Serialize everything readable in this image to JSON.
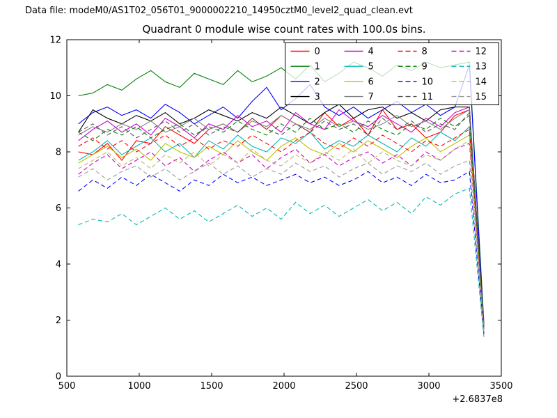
{
  "header": {
    "data_file_label": "Data file: modeM0/AS1T02_056T01_9000002210_14950cztM0_level2_quad_clean.evt"
  },
  "chart_data": {
    "type": "line",
    "title": "Quadrant 0 module wise count rates with 100.0s bins.",
    "xlabel": "",
    "ylabel": "",
    "x_offset_label": "+2.6837e8",
    "xlim": [
      500,
      3500
    ],
    "ylim": [
      0,
      12
    ],
    "x_ticks": [
      500,
      1000,
      1500,
      2000,
      2500,
      3000,
      3500
    ],
    "y_ticks": [
      0,
      2,
      4,
      6,
      8,
      10,
      12
    ],
    "grid": false,
    "legend_position": "upper right",
    "legend_columns": 4,
    "x": [
      580,
      680,
      780,
      880,
      980,
      1080,
      1180,
      1280,
      1380,
      1480,
      1580,
      1680,
      1780,
      1880,
      1980,
      2080,
      2180,
      2280,
      2380,
      2480,
      2580,
      2680,
      2780,
      2880,
      2980,
      3080,
      3180,
      3280,
      3380
    ],
    "series": [
      {
        "name": "0",
        "color": "#ff0000",
        "dash": "solid",
        "values": [
          8.0,
          7.9,
          8.3,
          7.7,
          8.4,
          8.3,
          8.9,
          8.6,
          8.3,
          8.8,
          9.0,
          8.7,
          9.2,
          8.8,
          9.3,
          9.0,
          8.7,
          9.4,
          8.9,
          9.2,
          8.6,
          9.5,
          8.8,
          9.0,
          8.5,
          8.7,
          9.3,
          9.5,
          1.8
        ]
      },
      {
        "name": "1",
        "color": "#007f00",
        "dash": "solid",
        "values": [
          10.0,
          10.1,
          10.4,
          10.2,
          10.6,
          10.9,
          10.5,
          10.3,
          10.8,
          10.6,
          10.4,
          10.9,
          10.5,
          10.7,
          11.0,
          10.6,
          11.1,
          10.5,
          10.8,
          11.2,
          11.0,
          10.7,
          11.1,
          10.9,
          11.2,
          11.0,
          11.1,
          11.2,
          1.9
        ]
      },
      {
        "name": "2",
        "color": "#0000ff",
        "dash": "solid",
        "values": [
          9.0,
          9.4,
          9.6,
          9.3,
          9.5,
          9.2,
          9.7,
          9.4,
          9.0,
          9.3,
          9.6,
          9.2,
          9.8,
          10.3,
          9.5,
          9.9,
          10.4,
          9.6,
          9.3,
          9.6,
          9.2,
          9.5,
          9.8,
          9.4,
          9.7,
          9.3,
          9.6,
          11.1,
          1.7
        ]
      },
      {
        "name": "3",
        "color": "#000000",
        "dash": "solid",
        "values": [
          8.7,
          9.5,
          9.2,
          9.0,
          9.3,
          9.1,
          9.4,
          9.0,
          9.2,
          9.5,
          9.3,
          9.1,
          9.4,
          9.2,
          9.6,
          9.3,
          9.0,
          9.4,
          9.7,
          9.2,
          9.5,
          9.6,
          9.2,
          9.4,
          9.1,
          9.5,
          9.6,
          9.6,
          1.8
        ]
      },
      {
        "name": "4",
        "color": "#cc00cc",
        "dash": "solid",
        "values": [
          8.4,
          8.8,
          9.1,
          8.7,
          9.0,
          8.6,
          9.2,
          8.9,
          8.5,
          9.0,
          8.8,
          9.3,
          8.9,
          9.1,
          8.7,
          9.4,
          9.0,
          8.8,
          9.5,
          9.1,
          8.9,
          9.3,
          9.0,
          8.7,
          9.2,
          8.9,
          9.4,
          9.6,
          1.6
        ]
      },
      {
        "name": "5",
        "color": "#00b8b8",
        "dash": "solid",
        "values": [
          7.7,
          8.0,
          8.4,
          7.9,
          8.2,
          8.5,
          8.0,
          8.3,
          7.8,
          8.4,
          8.1,
          8.6,
          8.2,
          8.0,
          8.5,
          8.3,
          8.7,
          8.1,
          8.4,
          8.2,
          8.6,
          8.3,
          8.0,
          8.5,
          8.2,
          8.7,
          8.4,
          8.9,
          1.5
        ]
      },
      {
        "name": "6",
        "color": "#bfbf00",
        "dash": "solid",
        "values": [
          7.6,
          7.9,
          8.2,
          7.8,
          8.1,
          7.7,
          8.3,
          8.0,
          7.8,
          8.2,
          7.9,
          8.4,
          8.0,
          7.7,
          8.2,
          8.5,
          8.1,
          7.9,
          8.3,
          8.0,
          8.4,
          8.1,
          7.8,
          8.2,
          8.5,
          8.0,
          8.3,
          8.6,
          1.6
        ]
      },
      {
        "name": "7",
        "color": "#808080",
        "dash": "solid",
        "values": [
          8.6,
          8.9,
          8.7,
          9.0,
          8.8,
          9.1,
          8.7,
          8.9,
          9.2,
          8.8,
          9.0,
          8.7,
          9.1,
          8.9,
          9.3,
          9.0,
          8.8,
          9.2,
          8.9,
          9.1,
          8.8,
          9.0,
          9.3,
          8.9,
          9.1,
          8.8,
          9.2,
          9.5,
          1.7
        ]
      },
      {
        "name": "8",
        "color": "#ff0000",
        "dash": "dashed",
        "values": [
          8.2,
          8.5,
          8.1,
          8.4,
          8.0,
          8.3,
          8.6,
          8.2,
          8.5,
          8.1,
          8.4,
          8.2,
          8.6,
          8.3,
          8.0,
          8.4,
          8.7,
          8.3,
          8.1,
          8.5,
          8.2,
          8.6,
          8.3,
          8.0,
          8.4,
          8.2,
          8.5,
          8.8,
          1.8
        ]
      },
      {
        "name": "9",
        "color": "#007f00",
        "dash": "dashed",
        "values": [
          8.7,
          8.4,
          8.8,
          8.6,
          8.9,
          8.5,
          8.8,
          9.0,
          8.6,
          8.9,
          8.7,
          9.1,
          8.8,
          8.6,
          9.0,
          8.7,
          9.2,
          8.8,
          9.0,
          8.7,
          9.1,
          8.8,
          8.6,
          9.0,
          8.8,
          9.2,
          8.9,
          9.3,
          1.7
        ]
      },
      {
        "name": "10",
        "color": "#0000ff",
        "dash": "dashed",
        "values": [
          6.6,
          7.0,
          6.7,
          7.1,
          6.8,
          7.2,
          6.9,
          6.6,
          7.0,
          6.8,
          7.2,
          6.9,
          7.1,
          6.8,
          7.0,
          7.2,
          6.9,
          7.1,
          6.8,
          7.0,
          7.3,
          6.9,
          7.1,
          6.8,
          7.2,
          6.9,
          7.0,
          7.3,
          1.5
        ]
      },
      {
        "name": "11",
        "color": "#555555",
        "dash": "dashed",
        "values": [
          8.7,
          9.0,
          8.6,
          8.9,
          8.5,
          8.8,
          9.1,
          8.7,
          9.0,
          8.6,
          8.9,
          8.7,
          9.2,
          8.8,
          8.6,
          9.0,
          8.7,
          9.1,
          8.8,
          9.0,
          8.6,
          9.2,
          8.8,
          9.1,
          8.7,
          9.0,
          8.8,
          9.4,
          1.8
        ]
      },
      {
        "name": "12",
        "color": "#cc00cc",
        "dash": "dashed",
        "values": [
          7.2,
          7.6,
          7.9,
          7.4,
          7.7,
          8.0,
          7.5,
          7.8,
          7.3,
          7.7,
          8.0,
          7.6,
          7.9,
          7.4,
          7.8,
          8.1,
          7.6,
          7.9,
          7.5,
          7.8,
          8.0,
          7.6,
          7.9,
          7.5,
          8.0,
          7.7,
          8.1,
          8.3,
          1.6
        ]
      },
      {
        "name": "13",
        "color": "#00b8b8",
        "dash": "dashed",
        "values": [
          5.4,
          5.6,
          5.5,
          5.8,
          5.4,
          5.7,
          6.0,
          5.6,
          5.9,
          5.5,
          5.8,
          6.1,
          5.7,
          6.0,
          5.6,
          6.2,
          5.8,
          6.1,
          5.7,
          6.0,
          6.3,
          5.9,
          6.2,
          5.8,
          6.4,
          6.1,
          6.5,
          6.7,
          1.4
        ]
      },
      {
        "name": "14",
        "color": "#bdb76b",
        "dash": "dashed",
        "values": [
          7.4,
          7.7,
          8.0,
          7.5,
          7.8,
          7.4,
          7.9,
          7.6,
          8.0,
          7.5,
          7.9,
          7.6,
          8.1,
          7.7,
          7.5,
          7.9,
          7.6,
          8.0,
          7.7,
          8.1,
          7.6,
          8.0,
          7.7,
          7.5,
          7.9,
          7.7,
          8.1,
          8.4,
          1.6
        ]
      },
      {
        "name": "15",
        "color": "#999999",
        "dash": "dashed",
        "values": [
          7.1,
          7.4,
          7.0,
          7.3,
          7.5,
          7.1,
          7.4,
          7.0,
          7.3,
          7.6,
          7.2,
          7.5,
          7.1,
          7.4,
          7.2,
          7.6,
          7.3,
          7.5,
          7.1,
          7.4,
          7.6,
          7.2,
          7.5,
          7.3,
          7.6,
          7.2,
          7.5,
          7.7,
          1.5
        ]
      }
    ]
  }
}
